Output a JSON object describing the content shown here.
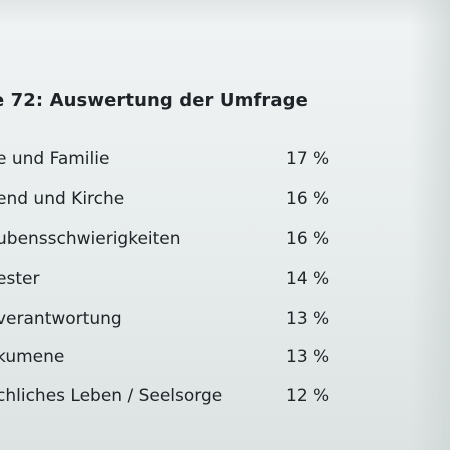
{
  "slide": {
    "title": "e 72: Auswertung der Umfrage",
    "rows": [
      {
        "label": "e und Familie",
        "value": "17 %"
      },
      {
        "label": "end und Kirche",
        "value": "16 %"
      },
      {
        "label": "ubensschwierigkeiten",
        "value": "16 %"
      },
      {
        "label": "ester",
        "value": "14 %"
      },
      {
        "label": "verantwortung",
        "value": "13 %"
      },
      {
        "label": "kumene",
        "value": "13 %"
      },
      {
        "label": "chliches Leben / Seelsorge",
        "value": "12 %"
      }
    ]
  }
}
